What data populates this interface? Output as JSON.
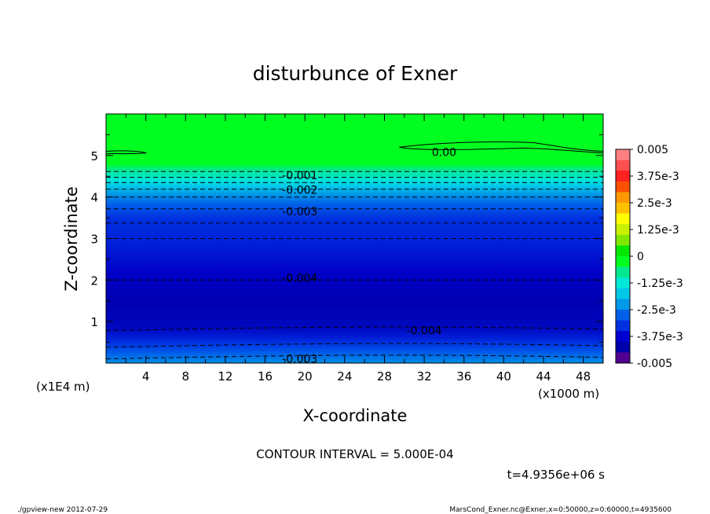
{
  "chart_data": {
    "type": "heatmap",
    "title": "disturbunce of Exner",
    "xlabel": "X-coordinate",
    "ylabel": "Z-coordinate",
    "x_unit": "(x1000 m)",
    "y_unit": "(x1E4 m)",
    "xlim": [
      0,
      50
    ],
    "ylim": [
      0,
      6
    ],
    "x_ticks": [
      "4",
      "8",
      "12",
      "16",
      "20",
      "24",
      "28",
      "32",
      "36",
      "40",
      "44",
      "48"
    ],
    "y_ticks": [
      "1",
      "2",
      "3",
      "4",
      "5"
    ],
    "colorbar": {
      "range": [
        -0.005,
        0.005
      ],
      "labels": [
        "0.005",
        "3.75e-3",
        "2.5e-3",
        "1.25e-3",
        "0",
        "-1.25e-3",
        "-2.5e-3",
        "-3.75e-3",
        "-0.005"
      ],
      "colors": [
        "#ff8080",
        "#ff5050",
        "#ff2020",
        "#ff5000",
        "#ff9800",
        "#ffc000",
        "#ffff00",
        "#c8f000",
        "#80e800",
        "#00e800",
        "#00ff20",
        "#00e890",
        "#00e8d8",
        "#00c8e8",
        "#0098e8",
        "#0060e8",
        "#0030e0",
        "#0000d0",
        "#0000a8",
        "#500090"
      ]
    },
    "field_profile": {
      "z": [
        0,
        0.2,
        0.4,
        0.6,
        1.0,
        1.5,
        2.0,
        3.0,
        3.6,
        4.0,
        4.3,
        4.5,
        4.7,
        5.0,
        6.0
      ],
      "value": [
        -0.0032,
        -0.0037,
        -0.004,
        -0.0044,
        -0.0046,
        -0.0047,
        -0.0045,
        -0.004,
        -0.0032,
        -0.0025,
        -0.0017,
        -0.0009,
        -0.0002,
        0,
        0
      ]
    },
    "contour_labels": [
      {
        "text": "0.00",
        "x": 34.0,
        "z": 5.08
      },
      {
        "text": "-0.001",
        "x": 19.5,
        "z": 4.52
      },
      {
        "text": "-0.002",
        "x": 19.5,
        "z": 4.17
      },
      {
        "text": "-0.003",
        "x": 19.5,
        "z": 3.65
      },
      {
        "text": "-0.004",
        "x": 19.5,
        "z": 2.05
      },
      {
        "text": "-0.004",
        "x": 32.0,
        "z": 0.79
      },
      {
        "text": "-0.003",
        "x": 19.5,
        "z": 0.1
      }
    ],
    "contour_interval": "CONTOUR INTERVAL = 5.000E-04",
    "time_label": "t=4.9356e+06 s"
  },
  "footer": {
    "left": "./gpview-new   2012-07-29",
    "right": "MarsCond_Exner.nc@Exner,x=0:50000,z=0:60000,t=4935600"
  }
}
